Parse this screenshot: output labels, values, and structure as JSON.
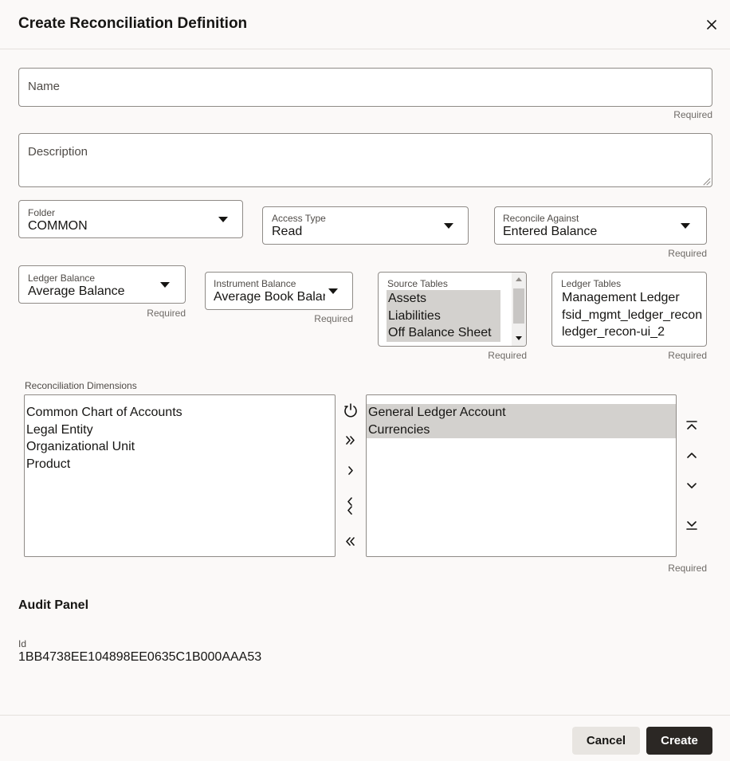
{
  "dialog": {
    "title": "Create Reconciliation Definition"
  },
  "fields": {
    "name": {
      "label": "Name",
      "hint": "Required"
    },
    "description": {
      "label": "Description"
    },
    "folder": {
      "label": "Folder",
      "value": "COMMON"
    },
    "access_type": {
      "label": "Access Type",
      "value": "Read"
    },
    "reconcile_against": {
      "label": "Reconcile Against",
      "value": "Entered Balance",
      "hint": "Required"
    },
    "ledger_balance": {
      "label": "Ledger Balance",
      "value": "Average Balance",
      "hint": "Required"
    },
    "instrument_balance": {
      "label": "Instrument Balance",
      "value": "Average Book Balan",
      "hint": "Required"
    },
    "source_tables": {
      "label": "Source Tables",
      "options": [
        "Assets",
        "Liabilities",
        "Off Balance Sheet"
      ],
      "hint": "Required"
    },
    "ledger_tables": {
      "label": "Ledger Tables",
      "options": [
        "Management Ledger",
        "fsid_mgmt_ledger_recon",
        "ledger_recon-ui_2"
      ],
      "hint": "Required"
    }
  },
  "dimensions": {
    "label": "Reconciliation Dimensions",
    "available": [
      "Common Chart of Accounts",
      "Legal Entity",
      "Organizational Unit",
      "Product"
    ],
    "selected": [
      "General Ledger Account",
      "Currencies"
    ],
    "hint": "Required"
  },
  "audit": {
    "title": "Audit Panel",
    "id_label": "Id",
    "id_value": "1BB4738EE104898EE0635C1B000AAA53"
  },
  "buttons": {
    "cancel": "Cancel",
    "create": "Create"
  }
}
